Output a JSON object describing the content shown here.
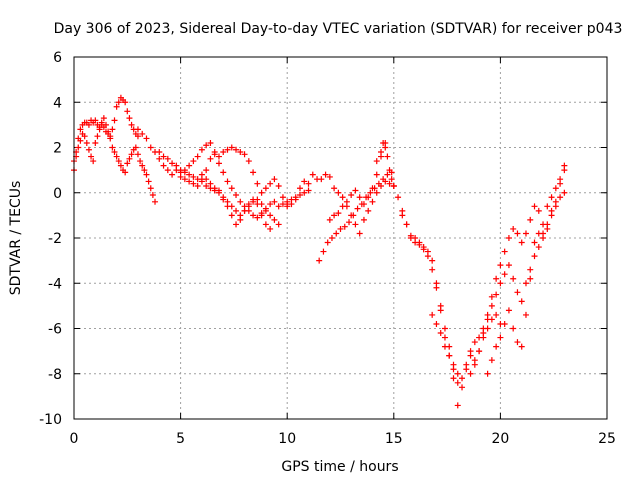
{
  "chart_data": {
    "type": "scatter",
    "title": "Day 306 of 2023, Sidereal Day-to-day VTEC variation (SDTVAR) for receiver p043",
    "xlabel": "GPS time / hours",
    "ylabel": "SDTVAR / TECUs",
    "xlim": [
      0,
      25
    ],
    "ylim": [
      -10,
      6
    ],
    "xticks": [
      0,
      5,
      10,
      15,
      20,
      25
    ],
    "yticks": [
      -10,
      -8,
      -6,
      -4,
      -2,
      0,
      2,
      4,
      6
    ],
    "grid": true,
    "marker": "plus",
    "color": "#ff0000",
    "series": [
      {
        "x": [
          0.0,
          0.1,
          0.2,
          0.3,
          0.4,
          0.5,
          0.6,
          0.7,
          0.8,
          0.9,
          1.0,
          1.1,
          1.2,
          1.3,
          1.4,
          1.5,
          1.6,
          1.7,
          1.8,
          1.9,
          2.0,
          2.1,
          2.2,
          2.3,
          2.4,
          2.5,
          2.6,
          2.7,
          2.8,
          2.9,
          3.0
        ],
        "y": [
          1.0,
          1.8,
          2.4,
          2.8,
          3.0,
          3.1,
          3.1,
          3.0,
          3.2,
          3.1,
          3.2,
          3.0,
          2.9,
          3.1,
          3.3,
          3.0,
          2.7,
          2.5,
          2.8,
          3.2,
          3.8,
          4.0,
          4.2,
          4.1,
          4.0,
          3.6,
          3.3,
          3.0,
          2.8,
          2.6,
          2.5
        ]
      },
      {
        "x": [
          0.0,
          0.1,
          0.2,
          0.3,
          0.4,
          0.5,
          0.6,
          0.7,
          0.8,
          0.9,
          1.0,
          1.1,
          1.2,
          1.3,
          1.4,
          1.5,
          1.6,
          1.7,
          1.8,
          1.9,
          2.0,
          2.1,
          2.2,
          2.3,
          2.4,
          2.5,
          2.6,
          2.7,
          2.8,
          2.9,
          3.0,
          3.1,
          3.2,
          3.3,
          3.4,
          3.5,
          3.6,
          3.7,
          3.8
        ],
        "y": [
          1.4,
          1.6,
          2.0,
          2.3,
          2.6,
          2.5,
          2.2,
          1.9,
          1.6,
          1.4,
          2.2,
          2.5,
          2.8,
          3.0,
          2.9,
          2.7,
          2.6,
          2.4,
          2.0,
          1.8,
          1.6,
          1.4,
          1.2,
          1.0,
          0.9,
          1.3,
          1.5,
          1.7,
          1.9,
          2.0,
          1.7,
          1.4,
          1.2,
          1.0,
          0.8,
          0.5,
          0.2,
          -0.1,
          -0.4
        ]
      },
      {
        "x": [
          3.0,
          3.2,
          3.4,
          3.6,
          3.8,
          4.0,
          4.2,
          4.4,
          4.6,
          4.8,
          5.0,
          5.2,
          5.4,
          5.6,
          5.8,
          6.0,
          6.2,
          6.4,
          6.6,
          6.8,
          7.0,
          7.2,
          7.4,
          7.6,
          7.8,
          8.0,
          8.2,
          8.4,
          8.6,
          8.8,
          9.0,
          9.2,
          9.4,
          9.6
        ],
        "y": [
          2.8,
          2.6,
          2.4,
          2.0,
          1.8,
          1.5,
          1.2,
          1.0,
          0.8,
          1.0,
          0.7,
          0.6,
          0.5,
          0.4,
          0.3,
          0.6,
          1.0,
          1.5,
          1.7,
          1.3,
          0.9,
          0.5,
          0.2,
          -0.1,
          -0.4,
          -0.6,
          -0.8,
          -1.0,
          -1.1,
          -0.9,
          -0.8,
          -1.0,
          -1.2,
          -1.4
        ]
      },
      {
        "x": [
          4.0,
          4.2,
          4.4,
          4.6,
          4.8,
          5.0,
          5.2,
          5.4,
          5.6,
          5.8,
          6.0,
          6.2,
          6.4,
          6.6,
          6.8,
          7.0,
          7.2,
          7.4,
          7.6,
          7.8,
          8.0,
          8.2,
          8.4,
          8.6,
          8.8,
          9.0,
          9.2,
          9.4,
          9.6,
          9.8,
          10.0,
          10.2,
          10.4,
          10.6,
          10.8,
          11.0
        ],
        "y": [
          1.8,
          1.6,
          1.5,
          1.3,
          1.2,
          1.0,
          0.9,
          0.8,
          0.7,
          0.6,
          0.5,
          0.3,
          0.2,
          0.1,
          0.0,
          -0.2,
          -0.4,
          -0.6,
          -0.8,
          -1.0,
          -0.8,
          -0.6,
          -0.4,
          -0.3,
          -0.5,
          -0.7,
          -0.5,
          -0.4,
          -0.6,
          -0.5,
          -0.4,
          -0.3,
          -0.2,
          0.2,
          0.5,
          0.1
        ]
      },
      {
        "x": [
          5.0,
          5.2,
          5.4,
          5.6,
          5.8,
          6.0,
          6.2,
          6.4,
          6.6,
          6.8,
          7.0,
          7.2,
          7.4,
          7.6,
          7.8,
          8.0,
          8.2,
          8.4,
          8.6,
          8.8,
          9.0,
          9.2,
          9.4,
          9.6,
          9.8,
          10.0
        ],
        "y": [
          0.9,
          1.0,
          1.2,
          1.4,
          1.6,
          1.9,
          2.1,
          2.2,
          1.8,
          1.6,
          1.8,
          1.9,
          2.0,
          1.9,
          1.8,
          1.7,
          1.4,
          0.9,
          0.4,
          0.0,
          0.2,
          0.4,
          0.6,
          0.3,
          -0.2,
          -0.5
        ]
      },
      {
        "x": [
          6.0,
          6.2,
          6.4,
          6.6,
          6.8,
          7.0,
          7.2,
          7.4,
          7.6,
          7.8,
          8.0,
          8.2,
          8.4,
          8.6,
          8.8,
          9.0,
          9.2
        ],
        "y": [
          0.8,
          0.6,
          0.4,
          0.2,
          0.1,
          -0.3,
          -0.6,
          -1.0,
          -1.4,
          -1.2,
          -0.8,
          -0.5,
          -0.3,
          -0.5,
          -1.0,
          -1.4,
          -1.6
        ]
      },
      {
        "x": [
          10.0,
          10.2,
          10.4,
          10.6,
          10.8,
          11.0,
          11.2,
          11.4
        ],
        "y": [
          -0.6,
          -0.5,
          -0.3,
          -0.1,
          0.0,
          0.4,
          0.8,
          0.6
        ]
      },
      {
        "x": [
          11.6,
          11.8,
          12.0,
          12.2,
          12.4,
          12.6,
          12.8,
          13.0,
          13.2,
          13.4,
          13.6,
          13.8,
          14.0,
          14.2,
          14.4,
          14.6,
          14.8,
          15.0
        ],
        "y": [
          0.6,
          0.8,
          0.7,
          0.2,
          0.0,
          -0.2,
          -0.6,
          -1.0,
          -1.4,
          -1.8,
          -1.2,
          -0.8,
          -0.4,
          0.0,
          0.3,
          0.5,
          0.4,
          0.3
        ]
      },
      {
        "x": [
          11.5,
          11.7,
          11.9,
          12.1,
          12.3,
          12.5,
          12.7,
          12.9,
          13.1,
          13.3,
          13.5,
          13.7,
          13.9,
          14.1,
          14.3,
          14.5,
          14.7,
          14.9
        ],
        "y": [
          -3.0,
          -2.6,
          -2.2,
          -2.0,
          -1.8,
          -1.6,
          -1.5,
          -1.3,
          -1.0,
          -0.7,
          -0.5,
          -0.2,
          0.0,
          0.2,
          0.4,
          0.6,
          0.8,
          0.9
        ]
      },
      {
        "x": [
          12.0,
          12.2,
          12.4,
          12.6,
          12.8,
          13.0,
          13.2,
          13.4,
          13.6,
          13.8,
          14.0,
          14.2,
          14.4,
          14.6
        ],
        "y": [
          -1.2,
          -1.0,
          -0.9,
          -0.6,
          -0.4,
          -0.1,
          0.1,
          -0.2,
          -0.5,
          -0.2,
          0.2,
          0.8,
          1.6,
          2.2
        ]
      },
      {
        "x": [
          14.2,
          14.4,
          14.5,
          14.6,
          14.7,
          14.8,
          14.9,
          15.0
        ],
        "y": [
          1.4,
          1.8,
          2.2,
          2.0,
          1.6,
          1.0,
          0.6,
          0.3
        ]
      },
      {
        "x": [
          15.0,
          15.2,
          15.4,
          15.6,
          15.8,
          16.0,
          16.2,
          16.4,
          16.6,
          16.8,
          17.0,
          17.2,
          17.4,
          17.6,
          17.8,
          18.0,
          18.2,
          18.4,
          18.6,
          18.8,
          19.0,
          19.2,
          19.4,
          19.6,
          19.8,
          20.0
        ],
        "y": [
          0.3,
          -0.2,
          -0.8,
          -1.4,
          -1.9,
          -2.0,
          -2.2,
          -2.4,
          -2.6,
          -3.0,
          -4.0,
          -5.0,
          -6.0,
          -6.8,
          -7.6,
          -8.4,
          -8.2,
          -7.6,
          -7.2,
          -7.4,
          -7.0,
          -6.4,
          -6.0,
          -5.6,
          -5.4,
          -5.8
        ]
      },
      {
        "x": [
          15.4,
          15.6,
          15.8,
          16.0,
          16.2,
          16.4,
          16.6,
          16.8,
          17.0,
          17.2,
          17.4,
          17.6,
          17.8,
          18.0,
          18.2,
          18.4,
          18.6,
          18.8,
          19.0,
          19.2,
          19.4,
          19.6,
          19.8,
          20.0,
          20.2,
          20.4,
          20.6,
          20.8
        ],
        "y": [
          -1.0,
          -1.4,
          -2.0,
          -2.2,
          -2.3,
          -2.5,
          -2.8,
          -3.4,
          -4.2,
          -5.2,
          -6.4,
          -7.2,
          -8.2,
          -9.4,
          -8.6,
          -7.8,
          -7.0,
          -6.6,
          -6.4,
          -6.0,
          -5.6,
          -5.0,
          -4.5,
          -4.0,
          -3.6,
          -3.2,
          -3.8,
          -4.4
        ]
      },
      {
        "x": [
          16.8,
          17.0,
          17.2,
          17.4,
          17.6,
          17.8,
          18.0
        ],
        "y": [
          -5.4,
          -5.8,
          -6.2,
          -6.8,
          -7.2,
          -7.8,
          -8.0
        ]
      },
      {
        "x": [
          18.6,
          18.8,
          19.0,
          19.2,
          19.4,
          19.6,
          19.8,
          20.0,
          20.2,
          20.4,
          20.6,
          20.8,
          21.0,
          21.2,
          21.4,
          21.6,
          21.8,
          22.0,
          22.2,
          22.4,
          22.6,
          22.8,
          23.0
        ],
        "y": [
          -8.0,
          -7.6,
          -7.0,
          -6.2,
          -5.4,
          -4.6,
          -3.8,
          -3.2,
          -2.6,
          -2.0,
          -1.6,
          -1.8,
          -2.2,
          -1.8,
          -1.2,
          -0.6,
          -0.8,
          -1.4,
          -0.6,
          -0.2,
          0.2,
          0.6,
          1.0
        ]
      },
      {
        "x": [
          19.4,
          19.6,
          19.8,
          20.0,
          20.2,
          20.4,
          20.6,
          20.8,
          21.0,
          21.2,
          21.4,
          21.6,
          21.8,
          22.0,
          22.2,
          22.4,
          22.6,
          22.8,
          23.0
        ],
        "y": [
          -8.0,
          -7.4,
          -6.8,
          -6.4,
          -5.8,
          -5.2,
          -6.0,
          -6.6,
          -6.8,
          -5.4,
          -3.8,
          -2.2,
          -1.8,
          -2.0,
          -1.6,
          -0.8,
          -0.4,
          0.4,
          1.2
        ]
      },
      {
        "x": [
          21.0,
          21.2,
          21.4,
          21.6,
          21.8,
          22.0,
          22.2,
          22.4,
          22.6,
          22.8,
          23.0
        ],
        "y": [
          -4.8,
          -4.0,
          -3.4,
          -2.8,
          -2.4,
          -1.8,
          -1.4,
          -1.0,
          -0.6,
          -0.2,
          0.0
        ]
      }
    ]
  }
}
